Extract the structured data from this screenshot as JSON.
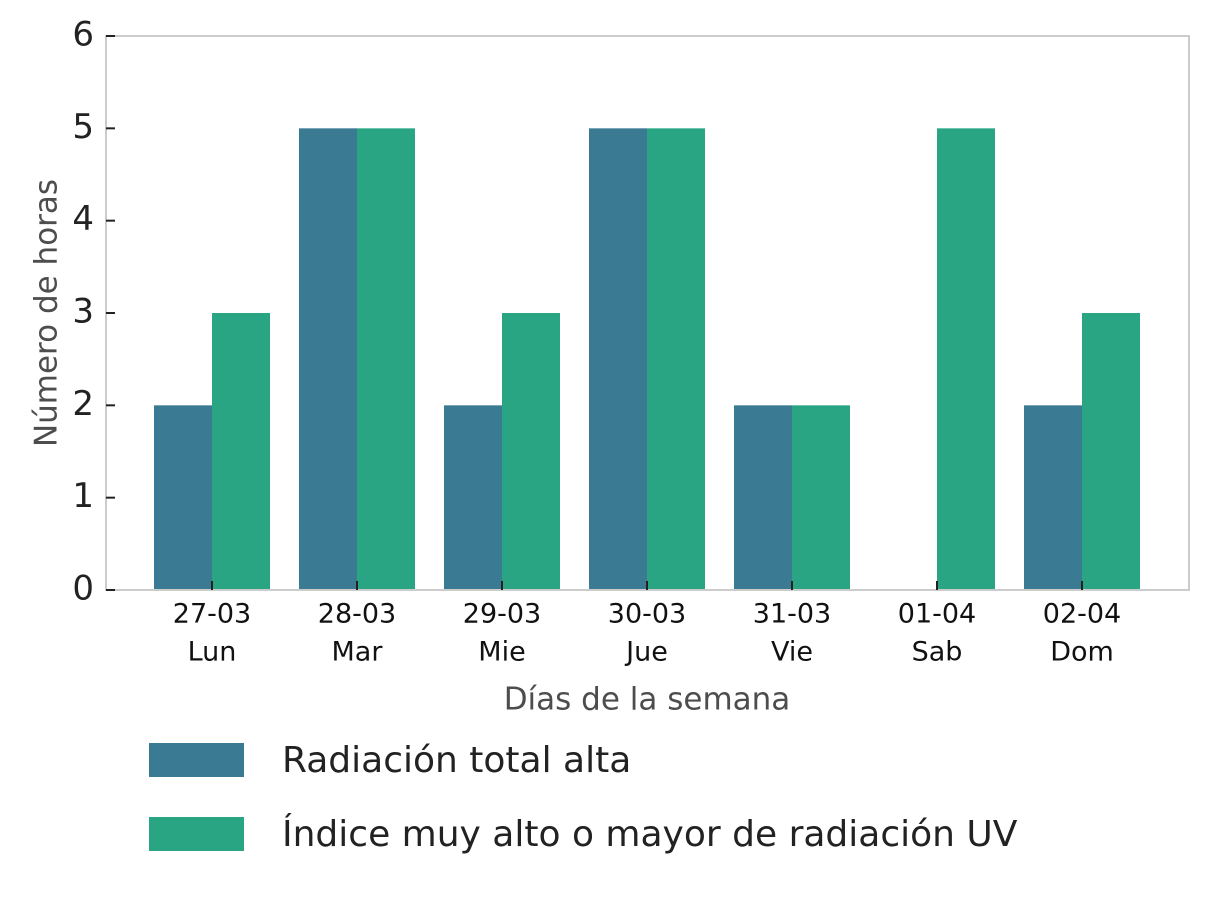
{
  "chart_data": {
    "type": "bar",
    "title": "",
    "xlabel": "Días de la semana",
    "ylabel": "Número de horas",
    "ylim": [
      0,
      6
    ],
    "yticks": [
      0,
      1,
      2,
      3,
      4,
      5,
      6
    ],
    "grid": false,
    "legend_position": "bottom",
    "categories": [
      {
        "date": "27-03",
        "day": "Lun"
      },
      {
        "date": "28-03",
        "day": "Mar"
      },
      {
        "date": "29-03",
        "day": "Mie"
      },
      {
        "date": "30-03",
        "day": "Jue"
      },
      {
        "date": "31-03",
        "day": "Vie"
      },
      {
        "date": "01-04",
        "day": "Sab"
      },
      {
        "date": "02-04",
        "day": "Dom"
      }
    ],
    "series": [
      {
        "name": "Radiación total alta",
        "color": "#3a7a93",
        "values": [
          2,
          5,
          2,
          5,
          2,
          0,
          2
        ]
      },
      {
        "name": "Índice muy alto o mayor de radiación UV",
        "color": "#29a584",
        "values": [
          3,
          5,
          3,
          5,
          2,
          5,
          3
        ]
      }
    ]
  }
}
